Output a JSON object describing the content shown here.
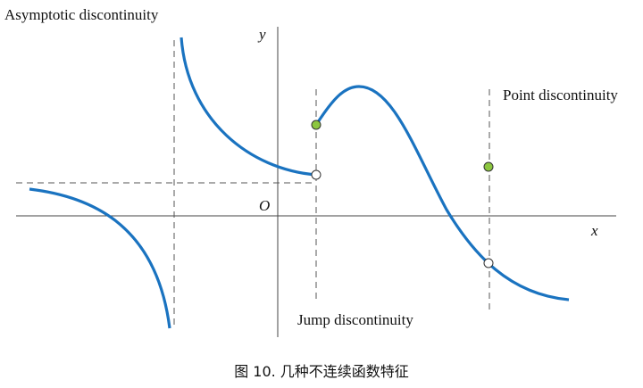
{
  "labels": {
    "asymptotic": "Asymptotic discontinuity",
    "point": "Point discontinuity",
    "jump": "Jump discontinuity",
    "y_axis": "y",
    "x_axis": "x",
    "origin": "O"
  },
  "caption": "图 10. 几种不连续函数特征"
}
